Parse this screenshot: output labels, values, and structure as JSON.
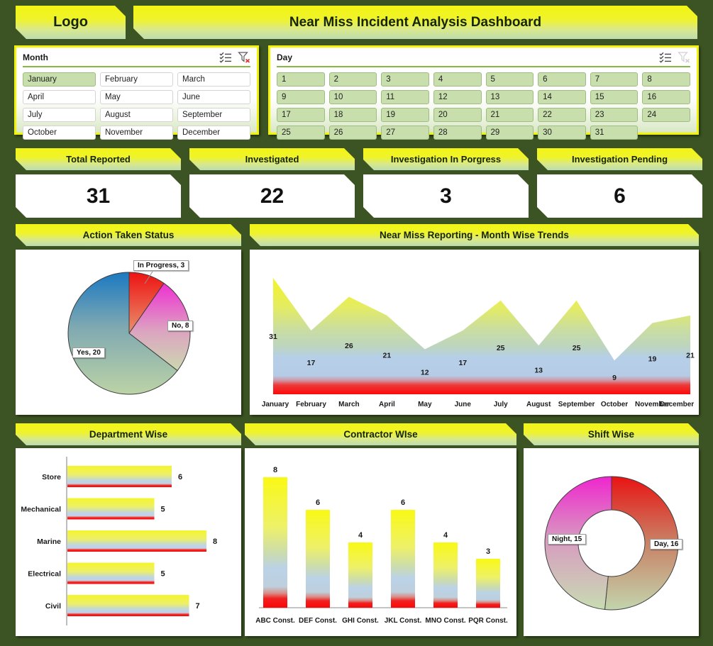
{
  "header": {
    "logo": "Logo",
    "title": "Near Miss Incident Analysis Dashboard"
  },
  "theme": {
    "background": "#3c5424",
    "tab_yellow": "#f2f513",
    "tab_fade_green": "#bedcae",
    "slicer_selected": "#c8dfad",
    "slicer_border": "#f2f307"
  },
  "slicers": {
    "month": {
      "title": "Month",
      "items": [
        "January",
        "February",
        "March",
        "April",
        "May",
        "June",
        "July",
        "August",
        "September",
        "October",
        "November",
        "December"
      ],
      "selected_items": [
        "January"
      ],
      "icons": [
        "multi-select-icon",
        "clear-filter-icon"
      ]
    },
    "day": {
      "title": "Day",
      "items": [
        "1",
        "2",
        "3",
        "4",
        "5",
        "6",
        "7",
        "8",
        "9",
        "10",
        "11",
        "12",
        "13",
        "14",
        "15",
        "16",
        "17",
        "18",
        "19",
        "20",
        "21",
        "22",
        "23",
        "24",
        "25",
        "26",
        "27",
        "28",
        "29",
        "30",
        "31"
      ],
      "all_selected": true,
      "clear_filter_disabled": true,
      "icons": [
        "multi-select-icon",
        "clear-filter-icon"
      ]
    }
  },
  "kpis": [
    {
      "label": "Total Reported",
      "value": "31"
    },
    {
      "label": "Investigated",
      "value": "22"
    },
    {
      "label": "Investigation In Porgress",
      "value": "3"
    },
    {
      "label": "Investigation Pending",
      "value": "6"
    }
  ],
  "chart_data": [
    {
      "type": "pie",
      "title": "Action Taken Status",
      "labels": [
        "In Progress",
        "No",
        "Yes"
      ],
      "values": [
        3,
        8,
        20
      ],
      "colors": [
        "#ee1212",
        "#ef2fd2",
        "#1b79c1"
      ],
      "data_label_format": "name, value",
      "legend": "none"
    },
    {
      "type": "area",
      "title": "Near Miss Reporting - Month Wise Trends",
      "categories": [
        "January",
        "February",
        "March",
        "April",
        "May",
        "June",
        "July",
        "August",
        "September",
        "October",
        "November",
        "December"
      ],
      "values": [
        31,
        17,
        26,
        21,
        12,
        17,
        25,
        13,
        25,
        9,
        19,
        21
      ],
      "ylim": [
        0,
        31
      ],
      "grid": false,
      "data_labels": true
    },
    {
      "type": "bar",
      "orientation": "horizontal",
      "title": "Department Wise",
      "categories": [
        "Store",
        "Mechanical",
        "Marine",
        "Electrical",
        "Civil"
      ],
      "values": [
        6,
        5,
        8,
        5,
        7
      ],
      "xlim": [
        0,
        8
      ],
      "data_labels": true
    },
    {
      "type": "bar",
      "orientation": "vertical",
      "title": "Contractor WIse",
      "categories": [
        "ABC Const.",
        "DEF Const.",
        "GHI Const.",
        "JKL Const.",
        "MNO Const.",
        "PQR Const."
      ],
      "values": [
        8,
        6,
        4,
        6,
        4,
        3
      ],
      "ylim": [
        0,
        8
      ],
      "data_labels": true
    },
    {
      "type": "donut",
      "title": "Shift Wise",
      "labels": [
        "Day",
        "Night"
      ],
      "values": [
        16,
        15
      ],
      "colors": [
        "#e91313",
        "#ef26ce"
      ],
      "data_label_format": "name, value"
    }
  ]
}
